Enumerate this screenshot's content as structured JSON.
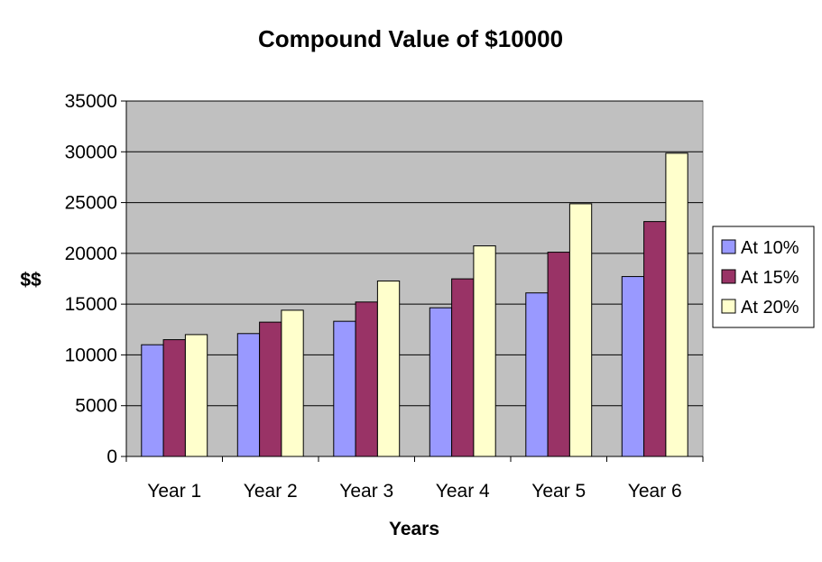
{
  "chart_data": {
    "type": "bar",
    "title": "Compound Value of $10000",
    "xlabel": "Years",
    "ylabel": "$$",
    "categories": [
      "Year 1",
      "Year 2",
      "Year 3",
      "Year 4",
      "Year 5",
      "Year 6"
    ],
    "series": [
      {
        "name": "At 10%",
        "color": "#9999ff",
        "values": [
          11000,
          12100,
          13310,
          14641,
          16105,
          17716
        ]
      },
      {
        "name": "At 15%",
        "color": "#993366",
        "values": [
          11500,
          13225,
          15209,
          17490,
          20114,
          23131
        ]
      },
      {
        "name": "At 20%",
        "color": "#ffffcc",
        "values": [
          12000,
          14400,
          17280,
          20736,
          24883,
          29860
        ]
      }
    ],
    "ylim": [
      0,
      35000
    ],
    "yticks": [
      0,
      5000,
      10000,
      15000,
      20000,
      25000,
      30000,
      35000
    ],
    "grid": true,
    "plot_background": "#c0c0c0",
    "legend_position": "right"
  }
}
